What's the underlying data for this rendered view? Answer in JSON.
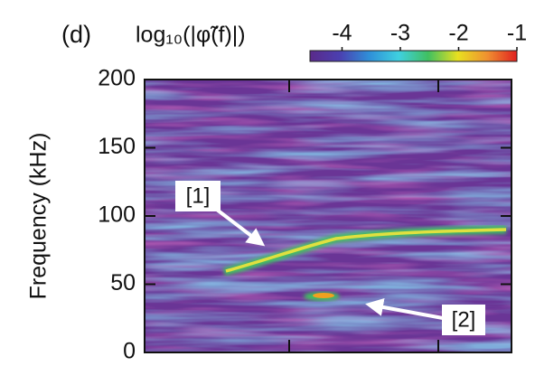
{
  "chart_data": {
    "type": "spectrogram",
    "panel_label": "(d)",
    "colorbar_label": "log₁₀(|φ̃(f)|)",
    "clim": [
      -4.55,
      -1
    ],
    "cticks": [
      -4,
      -3,
      -2,
      -1
    ],
    "colormap": [
      "#5a2a8a",
      "#4b3fb0",
      "#2f8fd8",
      "#3fd0e0",
      "#40c060",
      "#e8e020",
      "#f09030",
      "#e02020"
    ],
    "ylabel": "Frequency (kHz)",
    "ylim": [
      0,
      200
    ],
    "yticks": [
      0,
      50,
      100,
      150,
      200
    ],
    "annotations": [
      "[1]",
      "[2]"
    ]
  }
}
